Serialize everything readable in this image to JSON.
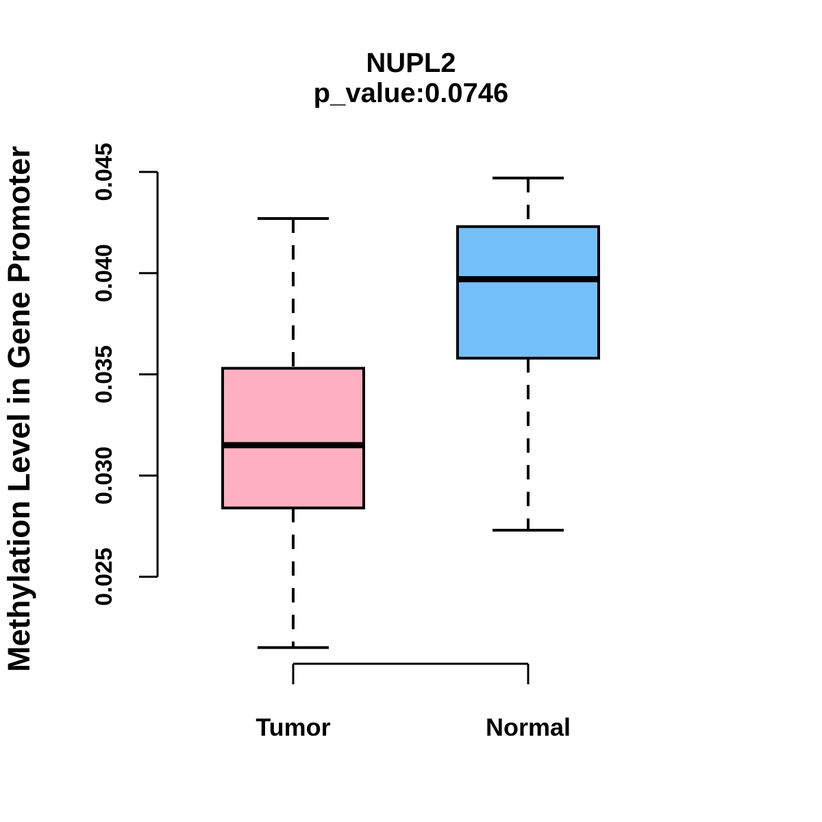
{
  "header": {
    "title": "NUPL2",
    "subtitle": "p_value:0.0746",
    "p_value": 0.0746
  },
  "colors": {
    "tumor_fill": "#FFB0C0",
    "normal_fill": "#74C0FA",
    "stroke": "#000000",
    "background": "#FFFFFF"
  },
  "chart_data": {
    "type": "boxplot",
    "title": "NUPL2",
    "subtitle": "p_value:0.0746",
    "ylabel": "Methylation Level in Gene Promoter",
    "xlabel": "",
    "categories": [
      "Tumor",
      "Normal"
    ],
    "ylim": [
      0.025,
      0.045
    ],
    "yticks": [
      0.025,
      0.03,
      0.035,
      0.04,
      0.045
    ],
    "ytick_labels": [
      "0.025",
      "0.030",
      "0.035",
      "0.040",
      "0.045"
    ],
    "grid": false,
    "legend": "none",
    "whisker_style": "dashed",
    "series": [
      {
        "name": "Tumor",
        "fill": "#FFB0C0",
        "whisker_low": 0.0215,
        "q1": 0.0284,
        "median": 0.0315,
        "q3": 0.0353,
        "whisker_high": 0.0427
      },
      {
        "name": "Normal",
        "fill": "#74C0FA",
        "whisker_low": 0.0273,
        "q1": 0.0358,
        "median": 0.0397,
        "q3": 0.0423,
        "whisker_high": 0.0447
      }
    ]
  }
}
